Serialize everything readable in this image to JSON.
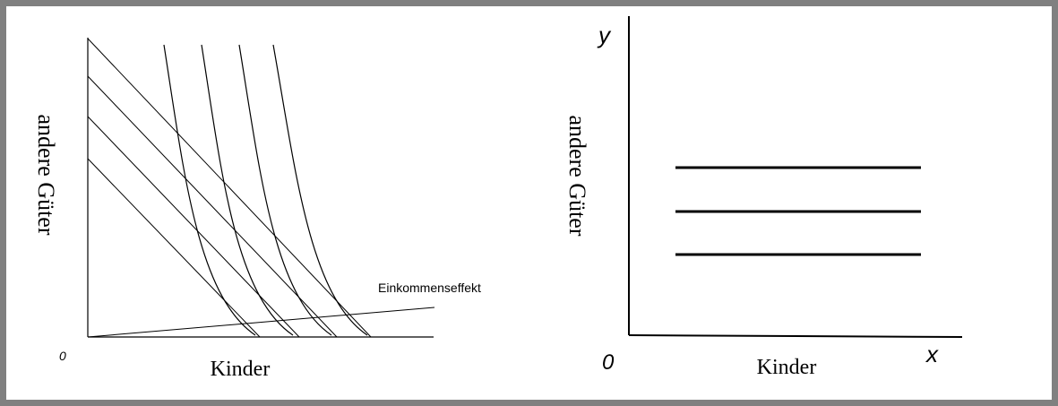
{
  "left_panel": {
    "origin_label": "0",
    "x_axis_label": "Kinder",
    "y_axis_label": "andere Güter",
    "income_effect_label": "Einkommenseffekt"
  },
  "right_panel": {
    "origin_label": "0",
    "x_axis_label": "Kinder",
    "y_axis_label": "andere Güter",
    "x_axis_symbol": "x",
    "y_axis_symbol": "y"
  },
  "colors": {
    "frame": "#808080",
    "ink": "#000000"
  }
}
